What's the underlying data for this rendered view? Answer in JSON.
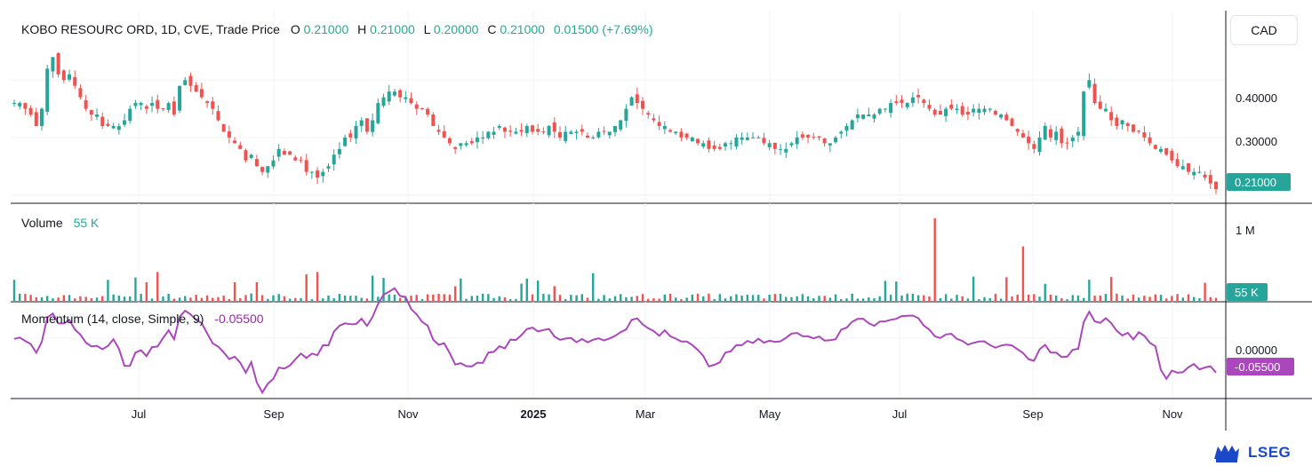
{
  "header": {
    "title": "KOBO RESOURC ORD, 1D, CVE, Trade Price",
    "o_label": "O",
    "o_value": "0.21000",
    "h_label": "H",
    "h_value": "0.21000",
    "l_label": "L",
    "l_value": "0.20000",
    "c_label": "C",
    "c_value": "0.21000",
    "change": "0.01500 (+7.69%)"
  },
  "currency_button": "CAD",
  "volume_pane": {
    "label": "Volume",
    "value": "55 K"
  },
  "momentum_pane": {
    "label": "Momentum (14, close, Simple, 9)",
    "value": "-0.05500"
  },
  "logo_text": "LSEG",
  "colors": {
    "up": "#26a69a",
    "up_text": "#22ab94",
    "down": "#ef5350",
    "momentum": "#ab47bc",
    "grid": "#f0f3fa"
  },
  "chart_data": [
    {
      "type": "candlestick",
      "title": "KOBO RESOURC ORD, 1D, CVE, Trade Price",
      "x_ticks": [
        "Jul",
        "Sep",
        "Nov",
        "2025",
        "Mar",
        "May",
        "Jul",
        "Sep",
        "Nov"
      ],
      "y_ticks": [
        "0.40000",
        "0.30000"
      ],
      "ylim": [
        0.19,
        0.47
      ],
      "last_price_tag": "0.21000",
      "close_series": [
        0.36,
        0.36,
        0.35,
        0.34,
        0.32,
        0.35,
        0.42,
        0.44,
        0.41,
        0.4,
        0.41,
        0.39,
        0.37,
        0.35,
        0.34,
        0.34,
        0.32,
        0.32,
        0.32,
        0.32,
        0.33,
        0.35,
        0.36,
        0.36,
        0.35,
        0.36,
        0.35,
        0.35,
        0.36,
        0.34,
        0.39,
        0.4,
        0.39,
        0.38,
        0.37,
        0.36,
        0.35,
        0.33,
        0.31,
        0.3,
        0.29,
        0.28,
        0.26,
        0.27,
        0.25,
        0.24,
        0.25,
        0.26,
        0.28,
        0.27,
        0.27,
        0.26,
        0.26,
        0.24,
        0.24,
        0.23,
        0.24,
        0.25,
        0.27,
        0.28,
        0.3,
        0.3,
        0.32,
        0.33,
        0.31,
        0.33,
        0.36,
        0.37,
        0.38,
        0.38,
        0.37,
        0.37,
        0.36,
        0.35,
        0.35,
        0.34,
        0.32,
        0.31,
        0.3,
        0.29,
        0.28,
        0.29,
        0.29,
        0.29,
        0.3,
        0.3,
        0.31,
        0.31,
        0.32,
        0.31,
        0.31,
        0.31,
        0.31,
        0.32,
        0.31,
        0.31,
        0.31,
        0.32,
        0.31,
        0.3,
        0.31,
        0.31,
        0.31,
        0.31,
        0.3,
        0.3,
        0.31,
        0.31,
        0.31,
        0.32,
        0.33,
        0.35,
        0.37,
        0.36,
        0.35,
        0.34,
        0.33,
        0.32,
        0.32,
        0.31,
        0.31,
        0.3,
        0.3,
        0.3,
        0.29,
        0.29,
        0.28,
        0.28,
        0.28,
        0.29,
        0.29,
        0.3,
        0.3,
        0.3,
        0.3,
        0.3,
        0.29,
        0.29,
        0.28,
        0.28,
        0.28,
        0.29,
        0.3,
        0.3,
        0.3,
        0.3,
        0.3,
        0.29,
        0.29,
        0.3,
        0.31,
        0.32,
        0.33,
        0.34,
        0.34,
        0.34,
        0.34,
        0.35,
        0.35,
        0.36,
        0.36,
        0.36,
        0.36,
        0.37,
        0.37,
        0.36,
        0.35,
        0.34,
        0.34,
        0.35,
        0.35,
        0.35,
        0.34,
        0.34,
        0.35,
        0.35,
        0.35,
        0.35,
        0.34,
        0.34,
        0.33,
        0.32,
        0.31,
        0.3,
        0.29,
        0.28,
        0.3,
        0.32,
        0.3,
        0.31,
        0.29,
        0.29,
        0.3,
        0.31,
        0.38,
        0.4,
        0.36,
        0.35,
        0.35,
        0.33,
        0.32,
        0.33,
        0.32,
        0.31,
        0.31,
        0.3,
        0.29,
        0.28,
        0.28,
        0.27,
        0.26,
        0.25,
        0.25,
        0.24,
        0.24,
        0.24,
        0.23,
        0.22,
        0.21
      ]
    },
    {
      "type": "bar",
      "title": "Volume",
      "y_ticks": [
        "1 M"
      ],
      "last_value_tag": "55 K",
      "annotated_values": [
        {
          "x": "Aug 2025",
          "value": 1000000
        },
        {
          "x": "Sep 2025",
          "value": 700000
        }
      ]
    },
    {
      "type": "line",
      "title": "Momentum (14, close, Simple, 9)",
      "y_ticks": [
        "0.00000"
      ],
      "ylim": [
        -0.16,
        0.07
      ],
      "last_value_tag": "-0.05500"
    }
  ]
}
